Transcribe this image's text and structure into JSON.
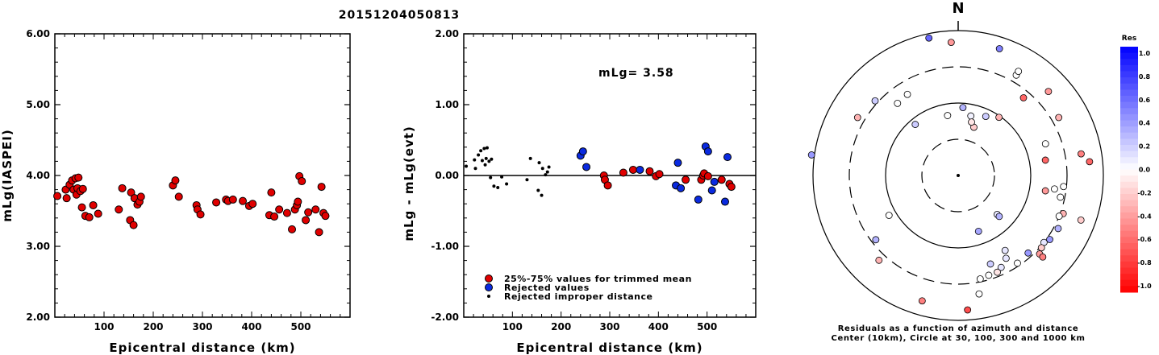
{
  "figure_title": "20151204050813",
  "chart_data": [
    {
      "type": "scatter",
      "name": "",
      "ylabel": "mLg(IASPEI)",
      "xlabel": "Epicentral distance (km)",
      "xlim": [
        0,
        600
      ],
      "ylim": [
        2.0,
        6.0
      ],
      "xticks": [
        "100",
        "200",
        "300",
        "400",
        "500"
      ],
      "yticks": [
        "2.00",
        "3.00",
        "4.00",
        "5.00",
        "6.00"
      ],
      "points": [
        [
          5,
          3.71
        ],
        [
          22,
          3.8
        ],
        [
          24,
          3.68
        ],
        [
          30,
          3.87
        ],
        [
          35,
          3.93
        ],
        [
          38,
          3.8
        ],
        [
          42,
          3.96
        ],
        [
          44,
          3.73
        ],
        [
          46,
          3.82
        ],
        [
          48,
          3.97
        ],
        [
          52,
          3.78
        ],
        [
          55,
          3.55
        ],
        [
          57,
          3.81
        ],
        [
          62,
          3.43
        ],
        [
          70,
          3.41
        ],
        [
          78,
          3.58
        ],
        [
          88,
          3.46
        ],
        [
          130,
          3.52
        ],
        [
          137,
          3.82
        ],
        [
          153,
          3.37
        ],
        [
          155,
          3.76
        ],
        [
          160,
          3.3
        ],
        [
          162,
          3.68
        ],
        [
          168,
          3.59
        ],
        [
          172,
          3.63
        ],
        [
          175,
          3.7
        ],
        [
          240,
          3.86
        ],
        [
          245,
          3.93
        ],
        [
          252,
          3.7
        ],
        [
          288,
          3.58
        ],
        [
          290,
          3.52
        ],
        [
          296,
          3.45
        ],
        [
          328,
          3.62
        ],
        [
          348,
          3.66
        ],
        [
          352,
          3.64
        ],
        [
          362,
          3.66
        ],
        [
          382,
          3.64
        ],
        [
          395,
          3.57
        ],
        [
          402,
          3.6
        ],
        [
          436,
          3.44
        ],
        [
          440,
          3.76
        ],
        [
          446,
          3.42
        ],
        [
          456,
          3.52
        ],
        [
          472,
          3.47
        ],
        [
          482,
          3.24
        ],
        [
          488,
          3.52
        ],
        [
          492,
          3.58
        ],
        [
          494,
          3.63
        ],
        [
          497,
          3.99
        ],
        [
          502,
          3.92
        ],
        [
          510,
          3.37
        ],
        [
          515,
          3.48
        ],
        [
          530,
          3.52
        ],
        [
          537,
          3.2
        ],
        [
          542,
          3.84
        ],
        [
          546,
          3.47
        ],
        [
          550,
          3.43
        ]
      ]
    },
    {
      "type": "scatter",
      "name": "",
      "ylabel": "mLg - mLg(evt)",
      "xlabel": "Epicentral distance (km)",
      "xlim": [
        0,
        600
      ],
      "ylim": [
        -2.0,
        2.0
      ],
      "xticks": [
        "100",
        "200",
        "300",
        "400",
        "500"
      ],
      "yticks": [
        "-2.00",
        "-1.00",
        "0.00",
        "1.00",
        "2.00"
      ],
      "annotation": "mLg= 3.58",
      "legend": [
        "25%-75% values for trimmed mean",
        "Rejected values",
        "Rejected improper distance"
      ],
      "series_colors": {
        "trimmed": "#e00000",
        "rejected": "#0a2ae0",
        "improper": "#000000"
      },
      "trimmed": [
        [
          288,
          0.0
        ],
        [
          290,
          -0.06
        ],
        [
          296,
          -0.14
        ],
        [
          328,
          0.04
        ],
        [
          348,
          0.08
        ],
        [
          382,
          0.06
        ],
        [
          395,
          -0.01
        ],
        [
          402,
          0.02
        ],
        [
          456,
          -0.06
        ],
        [
          488,
          -0.06
        ],
        [
          492,
          0.0
        ],
        [
          494,
          0.03
        ],
        [
          502,
          -0.01
        ],
        [
          530,
          -0.06
        ],
        [
          546,
          -0.12
        ],
        [
          550,
          -0.16
        ]
      ],
      "rejected": [
        [
          240,
          0.28
        ],
        [
          245,
          0.34
        ],
        [
          252,
          0.12
        ],
        [
          362,
          0.08
        ],
        [
          436,
          -0.14
        ],
        [
          440,
          0.18
        ],
        [
          446,
          -0.18
        ],
        [
          482,
          -0.34
        ],
        [
          497,
          0.41
        ],
        [
          502,
          0.34
        ],
        [
          510,
          -0.21
        ],
        [
          515,
          -0.09
        ],
        [
          537,
          -0.37
        ],
        [
          542,
          0.26
        ]
      ],
      "improper": [
        [
          5,
          0.13
        ],
        [
          22,
          0.22
        ],
        [
          24,
          0.1
        ],
        [
          30,
          0.29
        ],
        [
          35,
          0.35
        ],
        [
          38,
          0.21
        ],
        [
          42,
          0.38
        ],
        [
          44,
          0.15
        ],
        [
          46,
          0.24
        ],
        [
          48,
          0.39
        ],
        [
          52,
          0.2
        ],
        [
          55,
          -0.03
        ],
        [
          57,
          0.23
        ],
        [
          62,
          -0.15
        ],
        [
          70,
          -0.17
        ],
        [
          78,
          -0.02
        ],
        [
          88,
          -0.12
        ],
        [
          130,
          -0.06
        ],
        [
          137,
          0.24
        ],
        [
          153,
          -0.21
        ],
        [
          155,
          0.18
        ],
        [
          160,
          -0.28
        ],
        [
          162,
          0.1
        ],
        [
          168,
          0.01
        ],
        [
          172,
          0.05
        ],
        [
          175,
          0.12
        ]
      ]
    },
    {
      "type": "scatter",
      "name": "",
      "north_label": "N",
      "caption_line1": "Residuals as a function of azimuth and distance",
      "caption_line2": "Center (10km), Circle at 30, 100, 300 and 1000 km",
      "colorbar_title": "Res",
      "colorbar_ticks": [
        "1.0",
        "0.8",
        "0.6",
        "0.4",
        "0.2",
        "0.0",
        "-0.2",
        "-0.4",
        "-0.6",
        "-0.8",
        "-1.0"
      ],
      "rings_km": [
        30,
        100,
        300,
        1000
      ],
      "stations": [
        [
          350,
          0.42,
          0.0
        ],
        [
          320,
          0.46,
          0.2
        ],
        [
          4,
          0.47,
          0.3
        ],
        [
          18,
          0.35,
          -0.2
        ],
        [
          12,
          0.42,
          0.05
        ],
        [
          25,
          0.45,
          0.2
        ],
        [
          14,
          0.38,
          -0.1
        ],
        [
          35,
          0.49,
          -0.3
        ],
        [
          80,
          0.61,
          -0.6
        ],
        [
          70,
          0.64,
          0.0
        ],
        [
          60,
          0.8,
          -0.3
        ],
        [
          40,
          0.7,
          -0.6
        ],
        [
          135,
          0.38,
          0.1
        ],
        [
          135,
          0.4,
          0.3
        ],
        [
          160,
          0.41,
          0.35
        ],
        [
          110,
          0.77,
          -0.3
        ],
        [
          102,
          0.72,
          0.0
        ],
        [
          98,
          0.67,
          0.0
        ],
        [
          100,
          0.61,
          -0.4
        ],
        [
          96,
          0.73,
          0.0
        ],
        [
          80,
          0.86,
          -0.5
        ],
        [
          84,
          0.91,
          -0.6
        ],
        [
          110,
          0.9,
          -0.2
        ],
        [
          112,
          0.75,
          0.0
        ],
        [
          128,
          0.75,
          0.1
        ],
        [
          131,
          0.76,
          -0.2
        ],
        [
          134,
          0.78,
          -0.4
        ],
        [
          134,
          0.81,
          -0.5
        ],
        [
          125,
          0.77,
          0.4
        ],
        [
          118,
          0.78,
          0.3
        ],
        [
          148,
          0.61,
          0.1
        ],
        [
          150,
          0.66,
          0.1
        ],
        [
          155,
          0.7,
          0.1
        ],
        [
          158,
          0.72,
          -0.1
        ],
        [
          163,
          0.72,
          0.0
        ],
        [
          168,
          0.73,
          0.0
        ],
        [
          170,
          0.83,
          0.0
        ],
        [
          138,
          0.72,
          0.4
        ],
        [
          146,
          0.73,
          0.0
        ],
        [
          160,
          0.65,
          0.2
        ],
        [
          176,
          0.93,
          -0.7
        ],
        [
          196,
          0.9,
          -0.5
        ],
        [
          223,
          0.8,
          -0.3
        ],
        [
          232,
          0.72,
          0.3
        ],
        [
          240,
          0.55,
          0.0
        ],
        [
          278,
          1.02,
          0.4
        ],
        [
          300,
          0.8,
          -0.3
        ],
        [
          312,
          0.77,
          0.2
        ],
        [
          320,
          0.65,
          0.0
        ],
        [
          328,
          0.66,
          0.0
        ],
        [
          348,
          0.97,
          0.6
        ],
        [
          357,
          0.92,
          -0.4
        ],
        [
          18,
          0.92,
          0.5
        ],
        [
          30,
          0.8,
          0.0
        ],
        [
          30,
          0.83,
          0.0
        ],
        [
          47,
          0.85,
          -0.4
        ]
      ]
    }
  ]
}
